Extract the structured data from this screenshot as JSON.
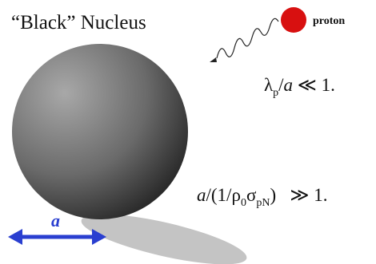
{
  "title": "“Black” Nucleus",
  "proton_label": "proton",
  "scale_label": "a",
  "formula_1": [
    "λ",
    "p",
    "/",
    "a",
    " ≪ 1."
  ],
  "formula_2": [
    "a",
    "/(1/",
    "ρ",
    "0",
    "σ",
    "pN",
    ")   ≫ 1."
  ]
}
